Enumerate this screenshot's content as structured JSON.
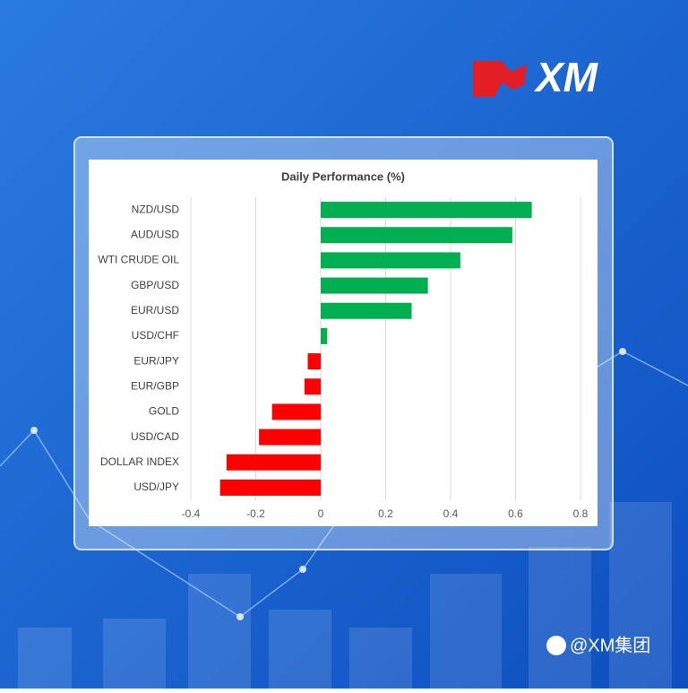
{
  "brand": {
    "logo": "XM",
    "watermark": "@XM集团"
  },
  "chart_data": {
    "type": "hbar",
    "title": "Daily Performance (%)",
    "categories": [
      "NZD/USD",
      "AUD/USD",
      "WTI CRUDE OIL",
      "GBP/USD",
      "EUR/USD",
      "USD/CHF",
      "EUR/JPY",
      "EUR/GBP",
      "GOLD",
      "USD/CAD",
      "DOLLAR INDEX",
      "USD/JPY"
    ],
    "values": [
      0.65,
      0.59,
      0.43,
      0.33,
      0.28,
      0.02,
      -0.04,
      -0.05,
      -0.15,
      -0.19,
      -0.29,
      -0.31
    ],
    "positive_color": "#00b050",
    "negative_color": "#ff0000",
    "xlim": [
      -0.4,
      0.8
    ],
    "xticks": [
      -0.4,
      -0.2,
      0,
      0.2,
      0.4,
      0.6,
      0.8
    ],
    "grid": true
  }
}
